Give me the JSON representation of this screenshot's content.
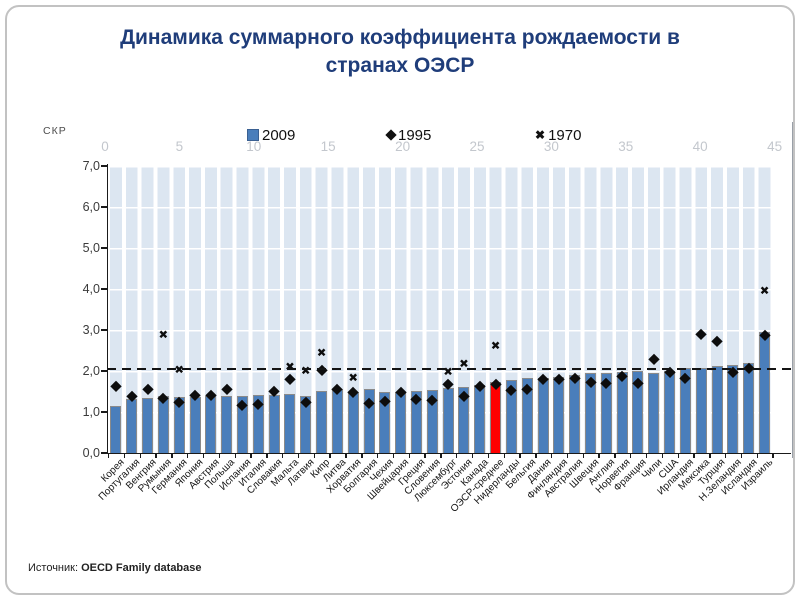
{
  "slide": {
    "title": "Динамика суммарного коэффициента рождаемости в странах ОЭСР",
    "title_line1": "Динамика суммарного коэффициента рождаемости в",
    "title_line2": "странах ОЭСР",
    "source_label": "Источник:",
    "source_text": "OECD Family database"
  },
  "chart_data": {
    "type": "bar",
    "subtype": "bars (2009) with scatter overlays (1995 diamonds, 1970 x-marks)",
    "title": "Динамика суммарного коэффициента рождаемости в странах ОЭСР",
    "xlabel": "",
    "ylabel": "СКР",
    "ylim": [
      0,
      7
    ],
    "y_tick_step": 1.0,
    "y_tick_labels": [
      "7,0",
      "6,0",
      "5,0",
      "4,0",
      "3,0",
      "2,0",
      "1,0",
      "0,0"
    ],
    "reference_line": 2.05,
    "reference_line_style": "dashed",
    "top_axis_ticks": [
      "0",
      "5",
      "10",
      "15",
      "20",
      "25",
      "30",
      "35",
      "40",
      "45"
    ],
    "grid": true,
    "legend_position": "top",
    "legend": [
      {
        "label": "2009",
        "marker": "square",
        "color": "#4A7EBB"
      },
      {
        "label": "1995",
        "marker": "diamond",
        "color": "#111111"
      },
      {
        "label": "1970",
        "marker": "x",
        "color": "#111111"
      }
    ],
    "highlight": {
      "category": "ОЭСР-среднее",
      "color": "#FF0000"
    },
    "colors": {
      "bar": "#4A7EBB",
      "bar_border": "#8A8A8A",
      "plot_bg": "#DCE6F1",
      "gridline": "#FFFFFF",
      "title": "#1F3D7A"
    },
    "categories": [
      "Корея",
      "Португалия",
      "Венгрия",
      "Румыния",
      "Германия",
      "Япония",
      "Австрия",
      "Польша",
      "Испания",
      "Италия",
      "Словакия",
      "Мальта",
      "Латвия",
      "Кипр",
      "Литва",
      "Хорватия",
      "Болгария",
      "Чехия",
      "Швейцария",
      "Греция",
      "Словения",
      "Люксембург",
      "Эстония",
      "Канада",
      "ОЭСР-среднее",
      "Нидерланды",
      "Бельгия",
      "Дания",
      "Финляндия",
      "Австралия",
      "Швеция",
      "Англия",
      "Норвегия",
      "Франция",
      "Чили",
      "США",
      "Ирландия",
      "Мексика",
      "Турция",
      "Н.Зеландия",
      "Исландия",
      "Израиль"
    ],
    "series": [
      {
        "name": "2009",
        "type": "bar",
        "values": [
          1.15,
          1.32,
          1.33,
          1.38,
          1.36,
          1.37,
          1.39,
          1.4,
          1.4,
          1.41,
          1.41,
          1.44,
          1.4,
          1.51,
          1.55,
          1.49,
          1.57,
          1.49,
          1.5,
          1.52,
          1.53,
          1.59,
          1.62,
          1.66,
          1.74,
          1.79,
          1.84,
          1.84,
          1.86,
          1.9,
          1.94,
          1.94,
          1.98,
          2.0,
          1.94,
          2.01,
          2.07,
          2.08,
          2.12,
          2.14,
          2.2,
          2.96
        ]
      },
      {
        "name": "1995",
        "type": "scatter",
        "marker": "diamond",
        "values": [
          1.63,
          1.4,
          1.55,
          1.33,
          1.25,
          1.42,
          1.42,
          1.55,
          1.17,
          1.19,
          1.52,
          1.8,
          1.25,
          2.02,
          1.55,
          1.48,
          1.23,
          1.28,
          1.48,
          1.31,
          1.29,
          1.69,
          1.38,
          1.64,
          1.69,
          1.53,
          1.56,
          1.8,
          1.81,
          1.82,
          1.73,
          1.71,
          1.87,
          1.71,
          2.3,
          1.97,
          1.84,
          2.9,
          2.74,
          1.98,
          2.08,
          2.88
        ]
      },
      {
        "name": "1970",
        "type": "scatter",
        "marker": "x",
        "values": [
          null,
          null,
          null,
          2.89,
          2.03,
          null,
          null,
          null,
          null,
          null,
          null,
          2.1,
          2.0,
          2.45,
          null,
          1.83,
          null,
          null,
          null,
          null,
          null,
          1.97,
          2.16,
          null,
          2.62,
          null,
          null,
          null,
          null,
          null,
          null,
          null,
          null,
          null,
          null,
          null,
          null,
          null,
          null,
          null,
          null,
          3.95
        ]
      }
    ]
  }
}
